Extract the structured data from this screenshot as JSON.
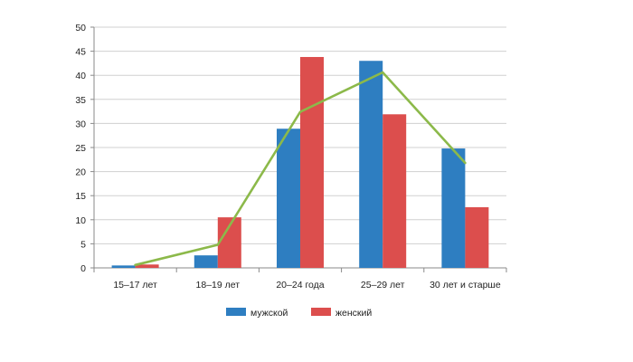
{
  "chart_data": {
    "type": "bar",
    "title": "",
    "xlabel": "",
    "ylabel": "",
    "ylim": [
      0,
      50
    ],
    "yticks": [
      0,
      5,
      10,
      15,
      20,
      25,
      30,
      35,
      40,
      45,
      50
    ],
    "grid": true,
    "legend_position": "bottom",
    "categories": [
      "15–17 лет",
      "18–19 лет",
      "20–24 года",
      "25–29 лет",
      "30 лет и старше"
    ],
    "series": [
      {
        "name": "мужской",
        "type": "bar",
        "color": "#2e7ec1",
        "values": [
          0.5,
          2.6,
          28.9,
          43.0,
          24.8
        ]
      },
      {
        "name": "женский",
        "type": "bar",
        "color": "#dc4e4d",
        "values": [
          0.7,
          10.5,
          43.8,
          31.9,
          12.6
        ]
      },
      {
        "name": "",
        "type": "line",
        "color": "#8cb94a",
        "values": [
          0.6,
          4.8,
          32.4,
          40.6,
          21.8
        ]
      }
    ]
  }
}
